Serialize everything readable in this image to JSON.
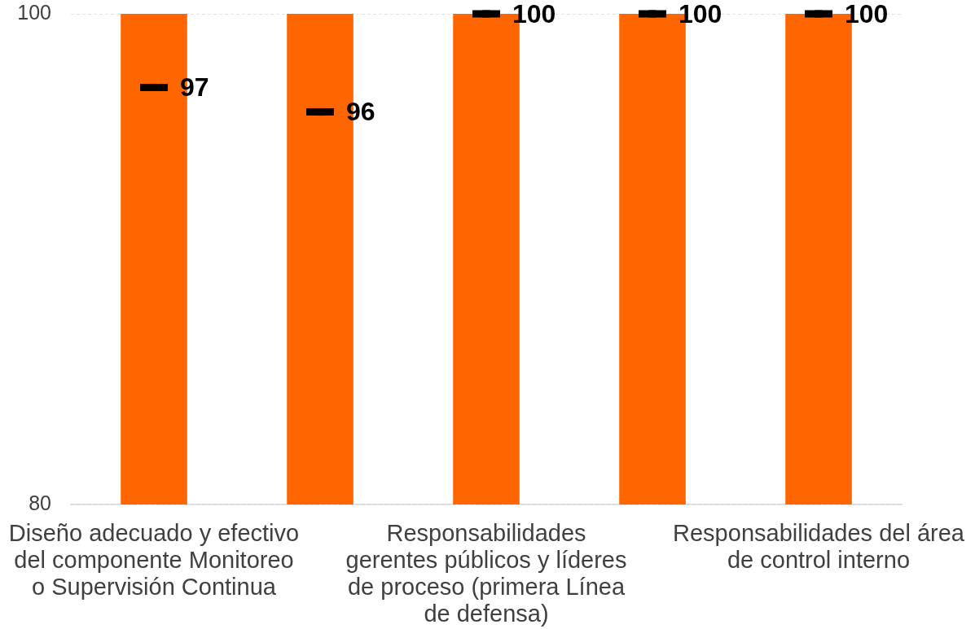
{
  "chart_data": {
    "type": "bar",
    "categories": [
      "Diseño adecuado y efectivo del componente Monitoreo o Supervisión Continua",
      null,
      "Responsabilidades gerentes públicos y líderes de proceso (primera Línea de defensa)",
      null,
      "Responsabilidades del área de control interno"
    ],
    "series": [
      {
        "color": "#ff6600",
        "values": [
          100,
          100,
          100,
          100,
          100
        ]
      },
      {
        "type": "scatter",
        "color": "#000000",
        "marker": "square",
        "values": [
          97,
          96,
          100,
          100,
          100
        ],
        "value_labels": [
          "97",
          "96",
          "100",
          "100",
          "100"
        ]
      }
    ],
    "ylim": [
      80,
      100
    ],
    "yticks": [
      80,
      100
    ],
    "grid": "y"
  }
}
